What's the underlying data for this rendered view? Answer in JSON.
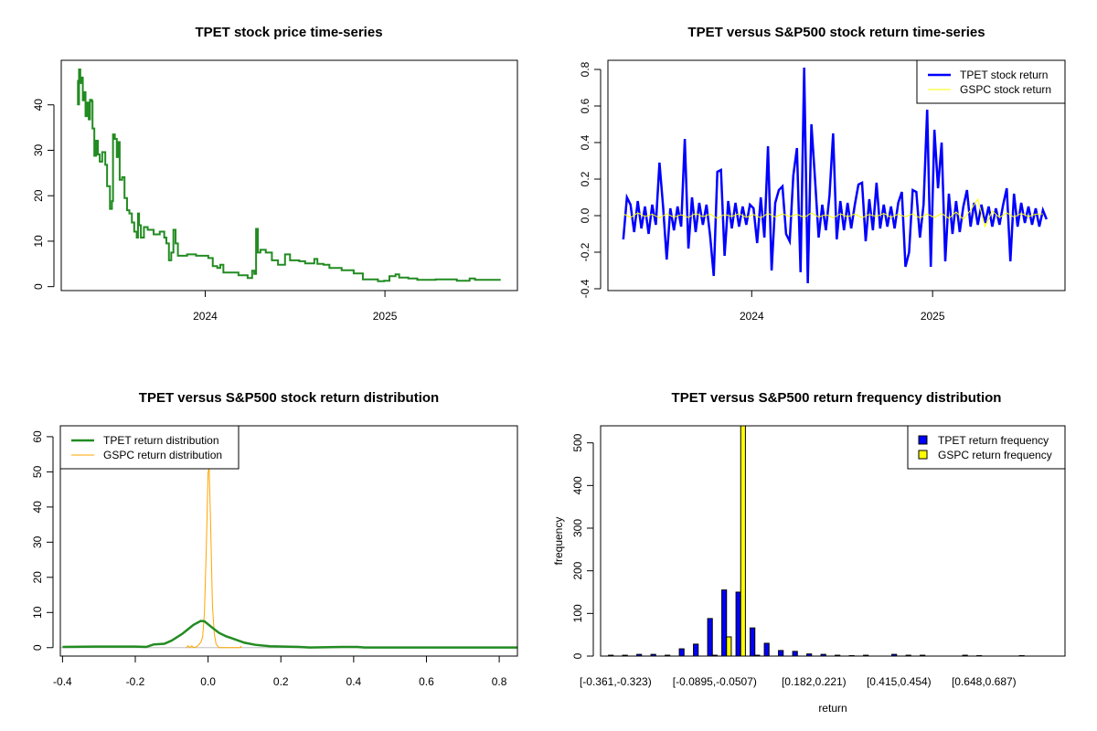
{
  "chart_data": [
    {
      "id": "price",
      "type": "line",
      "title": "TPET stock price time-series",
      "xlabel": "",
      "ylabel": "",
      "xlim": [
        2023.199,
        2025.737
      ],
      "ylim": [
        -0.87,
        49.8
      ],
      "x_ticks": [
        {
          "value": 2024,
          "label": "2024"
        },
        {
          "value": 2025,
          "label": "2025"
        }
      ],
      "y_ticks": [
        {
          "value": 0,
          "label": "0"
        },
        {
          "value": 10,
          "label": "10"
        },
        {
          "value": 20,
          "label": "20"
        },
        {
          "value": 30,
          "label": "30"
        },
        {
          "value": 40,
          "label": "40"
        }
      ],
      "series": [
        {
          "name": "TPET",
          "color": "#228B22",
          "x": [
            2023.288,
            2023.292,
            2023.298,
            2023.305,
            2023.312,
            2023.319,
            2023.325,
            2023.334,
            2023.342,
            2023.352,
            2023.359,
            2023.369,
            2023.373,
            2023.383,
            2023.393,
            2023.403,
            2023.413,
            2023.427,
            2023.444,
            2023.454,
            2023.47,
            2023.481,
            2023.487,
            2023.497,
            2023.508,
            2023.516,
            2023.524,
            2023.538,
            2023.551,
            2023.565,
            2023.578,
            2023.592,
            2023.605,
            2023.619,
            2023.626,
            2023.632,
            2023.642,
            2023.659,
            2023.68,
            2023.713,
            2023.747,
            2023.772,
            2023.784,
            2023.798,
            2023.811,
            2023.823,
            2023.835,
            2023.848,
            2023.899,
            2023.949,
            2024.017,
            2024.042,
            2024.067,
            2024.084,
            2024.101,
            2024.185,
            2024.236,
            2024.261,
            2024.273,
            2024.283,
            2024.293,
            2024.307,
            2024.337,
            2024.371,
            2024.405,
            2024.438,
            2024.444,
            2024.472,
            2024.523,
            2024.556,
            2024.607,
            2024.624,
            2024.658,
            2024.691,
            2024.759,
            2024.826,
            2024.877,
            2024.961,
            2024.995,
            2025.025,
            2025.059,
            2025.079,
            2025.13,
            2025.18,
            2025.282,
            2025.4,
            2025.471,
            2025.501,
            2025.639
          ],
          "y": [
            45.3,
            40.1,
            47.8,
            44.8,
            46.0,
            41.0,
            42.8,
            37.5,
            40.5,
            36.8,
            41.1,
            40.8,
            34.8,
            28.8,
            32.1,
            29.1,
            27.5,
            29.6,
            26.8,
            22.1,
            17.1,
            18.8,
            33.5,
            32.5,
            28.5,
            31.8,
            23.5,
            24.1,
            19.5,
            16.8,
            16.1,
            14.1,
            12.1,
            10.8,
            16.1,
            13.5,
            10.8,
            13.1,
            12.5,
            11.5,
            12.1,
            10.8,
            9.5,
            5.8,
            7.5,
            12.5,
            9.5,
            6.8,
            7.1,
            6.8,
            6.3,
            4.5,
            4.1,
            4.8,
            3.1,
            2.5,
            1.9,
            3.5,
            2.8,
            12.7,
            7.5,
            8.1,
            7.5,
            5.8,
            4.8,
            4.8,
            7.1,
            5.8,
            5.6,
            5.1,
            6.1,
            5.0,
            4.8,
            4.1,
            3.6,
            2.9,
            1.6,
            1.2,
            1.3,
            2.3,
            2.7,
            2.0,
            1.8,
            1.5,
            1.6,
            1.3,
            1.8,
            1.5,
            1.3
          ]
        }
      ]
    },
    {
      "id": "returns",
      "type": "line",
      "title": "TPET versus S&P500 stock return time-series",
      "xlim": [
        2023.205,
        2025.732
      ],
      "ylim": [
        -0.41,
        0.85
      ],
      "x_ticks": [
        {
          "value": 2024,
          "label": "2024"
        },
        {
          "value": 2025,
          "label": "2025"
        }
      ],
      "y_ticks": [
        {
          "value": -0.4,
          "label": "-0.4"
        },
        {
          "value": -0.2,
          "label": "-0.2"
        },
        {
          "value": 0,
          "label": "0.0"
        },
        {
          "value": 0.2,
          "label": "0.2"
        },
        {
          "value": 0.4,
          "label": "0.4"
        },
        {
          "value": 0.6,
          "label": "0.6"
        },
        {
          "value": 0.8,
          "label": "0.8"
        }
      ],
      "legend": {
        "position": "top-right",
        "entries": [
          "TPET stock return",
          "GSPC stock return"
        ]
      },
      "series": [
        {
          "name": "TPET stock return",
          "color": "#0000FF",
          "x_start": 2023.29,
          "x_step": 0.02,
          "values": [
            -0.13,
            0.1,
            0.06,
            -0.09,
            0.08,
            -0.07,
            0.05,
            -0.1,
            0.06,
            -0.05,
            0.29,
            0.05,
            -0.24,
            0.04,
            -0.08,
            0.05,
            -0.06,
            0.42,
            -0.18,
            0.1,
            -0.09,
            0.07,
            -0.05,
            0.06,
            -0.11,
            -0.33,
            0.24,
            0.25,
            -0.22,
            0.08,
            -0.07,
            0.07,
            -0.06,
            0.05,
            -0.05,
            0.06,
            0.04,
            -0.15,
            0.1,
            -0.12,
            0.38,
            -0.3,
            0.07,
            0.14,
            0.16,
            -0.1,
            -0.14,
            0.22,
            0.37,
            -0.31,
            0.81,
            -0.37,
            0.5,
            0.2,
            -0.12,
            0.06,
            -0.08,
            0.11,
            0.45,
            -0.13,
            0.08,
            -0.08,
            0.07,
            -0.07,
            0.06,
            0.17,
            0.18,
            -0.14,
            0.09,
            -0.08,
            0.18,
            -0.07,
            0.06,
            -0.06,
            0.05,
            -0.07,
            0.07,
            0.13,
            -0.28,
            -0.2,
            0.14,
            0.13,
            -0.12,
            0.06,
            0.58,
            -0.28,
            0.47,
            0.15,
            0.4,
            -0.25,
            0.12,
            -0.1,
            0.08,
            -0.09,
            0.05,
            0.14,
            -0.06,
            0.07,
            -0.05,
            0.06,
            -0.04,
            0.05,
            -0.06,
            0.04,
            -0.05,
            0.06,
            0.15,
            -0.25,
            0.12,
            -0.06,
            0.07,
            -0.04,
            0.05,
            -0.05,
            0.04,
            -0.06,
            0.03,
            -0.02
          ]
        },
        {
          "name": "GSPC stock return",
          "color": "#FFFF00",
          "x_start": 2023.29,
          "x_step": 0.04,
          "values": [
            0.01,
            -0.01,
            0.015,
            -0.005,
            0.008,
            -0.012,
            0.01,
            -0.008,
            0.005,
            -0.01,
            0.012,
            -0.006,
            0.009,
            -0.015,
            0.007,
            -0.004,
            0.011,
            -0.009,
            0.006,
            -0.012,
            0.013,
            -0.007,
            0.01,
            -0.005,
            0.008,
            -0.01,
            0.015,
            -0.008,
            0.006,
            -0.012,
            0.01,
            -0.006,
            0.009,
            -0.011,
            0.007,
            -0.005,
            0.012,
            -0.009,
            0.008,
            -0.006,
            0.01,
            -0.013,
            0.009,
            -0.01,
            0.012,
            -0.015,
            0.02,
            -0.02,
            0.03,
            0.09,
            -0.06,
            0.025,
            -0.01,
            0.015,
            -0.008,
            0.012,
            -0.005,
            0.008,
            0.01
          ]
        }
      ]
    },
    {
      "id": "density",
      "type": "line",
      "title": "TPET versus S&P500 stock return distribution",
      "xlim": [
        -0.406,
        0.85
      ],
      "ylim": [
        -2.4,
        63.1
      ],
      "x_ticks": [
        {
          "value": -0.4,
          "label": "-0.4"
        },
        {
          "value": -0.2,
          "label": "-0.2"
        },
        {
          "value": 0,
          "label": "0.0"
        },
        {
          "value": 0.2,
          "label": "0.2"
        },
        {
          "value": 0.4,
          "label": "0.4"
        },
        {
          "value": 0.6,
          "label": "0.6"
        },
        {
          "value": 0.8,
          "label": "0.8"
        }
      ],
      "y_ticks": [
        {
          "value": 0,
          "label": "0"
        },
        {
          "value": 10,
          "label": "10"
        },
        {
          "value": 20,
          "label": "20"
        },
        {
          "value": 30,
          "label": "30"
        },
        {
          "value": 40,
          "label": "40"
        },
        {
          "value": 50,
          "label": "50"
        },
        {
          "value": 60,
          "label": "60"
        }
      ],
      "legend": {
        "position": "top-left",
        "entries": [
          "TPET return distribution",
          "GSPC return distribution"
        ]
      },
      "series": [
        {
          "name": "TPET return distribution",
          "color": "#228B22",
          "x": [
            -0.4,
            -0.31,
            -0.2,
            -0.17,
            -0.15,
            -0.12,
            -0.1,
            -0.07,
            -0.04,
            -0.02,
            -0.01,
            0.01,
            0.03,
            0.05,
            0.07,
            0.1,
            0.13,
            0.17,
            0.25,
            0.28,
            0.37,
            0.41,
            0.43,
            0.85
          ],
          "y": [
            0.2,
            0.3,
            0.3,
            0.2,
            0.9,
            1.1,
            2.0,
            4.0,
            6.5,
            7.6,
            7.5,
            5.8,
            4.2,
            3.2,
            2.5,
            1.4,
            0.8,
            0.4,
            0.2,
            0.05,
            0.2,
            0.2,
            0.05,
            0.05
          ]
        },
        {
          "name": "GSPC return distribution",
          "color": "#FFA500",
          "x": [
            -0.06,
            -0.055,
            -0.05,
            -0.045,
            -0.04,
            -0.03,
            -0.02,
            -0.015,
            -0.01,
            -0.005,
            0,
            0.003,
            0.007,
            0.012,
            0.017,
            0.022,
            0.03,
            0.088,
            0.09,
            0.092
          ],
          "y": [
            0,
            0.5,
            0,
            0.5,
            0,
            0.3,
            1.5,
            3,
            10,
            28,
            50,
            51,
            35,
            12,
            4,
            1,
            0,
            0,
            0.3,
            0
          ]
        }
      ]
    },
    {
      "id": "histogram",
      "type": "bar",
      "title": "TPET versus S&P500 return frequency distribution",
      "xlabel": "return",
      "ylabel": "frequency",
      "ylim": [
        0,
        540
      ],
      "bin_start": -0.361,
      "bin_width": 0.0388,
      "x_labels": [
        {
          "bin": 0,
          "label": "[-0.361,-0.323)"
        },
        {
          "bin": 7,
          "label": "[-0.0895,-0.0507)"
        },
        {
          "bin": 14,
          "label": "[0.182,0.221)"
        },
        {
          "bin": 20,
          "label": "[0.415,0.454)"
        },
        {
          "bin": 26,
          "label": "[0.648,0.687)"
        }
      ],
      "y_ticks": [
        {
          "value": 0,
          "label": "0"
        },
        {
          "value": 100,
          "label": "100"
        },
        {
          "value": 200,
          "label": "200"
        },
        {
          "value": 300,
          "label": "300"
        },
        {
          "value": 400,
          "label": "400"
        },
        {
          "value": 500,
          "label": "500"
        }
      ],
      "legend": {
        "position": "top-right",
        "entries": [
          "TPET return frequency",
          "GSPC return frequency"
        ]
      },
      "series": [
        {
          "name": "TPET return frequency",
          "color": "#0000FF",
          "values": [
            2,
            2,
            4,
            4,
            2,
            17,
            28,
            88,
            155,
            150,
            66,
            30,
            13,
            11,
            5,
            4,
            2,
            1,
            2,
            0,
            4,
            2,
            2,
            0,
            0,
            2,
            1,
            0,
            0,
            1
          ]
        },
        {
          "name": "GSPC return frequency",
          "color": "#FFFF00",
          "values": [
            0,
            0,
            0,
            0,
            0,
            0,
            0,
            2,
            45,
            540,
            2,
            0,
            0,
            0,
            0,
            0,
            0,
            0,
            0,
            0,
            0,
            0,
            0,
            0,
            0,
            0,
            0,
            0,
            0,
            0
          ]
        }
      ]
    }
  ]
}
